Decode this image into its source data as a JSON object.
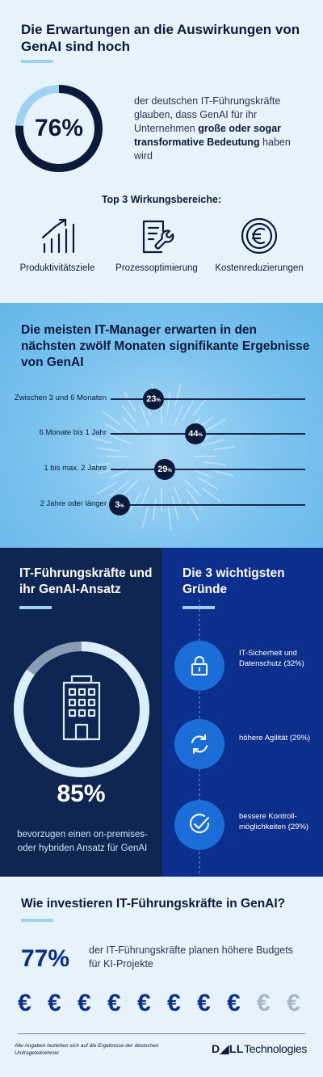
{
  "section1": {
    "title": "Die Erwartungen an die Auswirkungen von GenAI sind hoch",
    "stat_value": "76%",
    "stat_fraction": 0.76,
    "desc_plain": "der deutschen IT-Führungskräfte glauben, dass GenAI für ihr Unternehmen ",
    "desc_bold": "große oder sogar transformative Bedeutung",
    "desc_end": " haben wird",
    "top3_label": "Top 3 Wirkungsbereiche:",
    "areas": [
      {
        "label": "Produktivitätsziele",
        "icon": "chart-growth-icon"
      },
      {
        "label": "Prozessoptimierung",
        "icon": "document-wrench-icon"
      },
      {
        "label": "Kostenreduzierungen",
        "icon": "euro-coin-icon"
      }
    ]
  },
  "section2": {
    "title": "Die meisten IT-Manager erwarten in den nächsten zwölf Monaten signifikante Ergebnisse von GenAI",
    "rows": [
      {
        "label": "Zwischen 3 und 6 Monaten",
        "value": "23",
        "unit": "%"
      },
      {
        "label": "6 Monate bis 1 Jahr",
        "value": "44",
        "unit": "%"
      },
      {
        "label": "1 bis max. 2 Jahre",
        "value": "29",
        "unit": "%"
      },
      {
        "label": "2 Jahre oder länger",
        "value": "3",
        "unit": "%"
      }
    ]
  },
  "section3": {
    "left_title": "IT-Führungskräfte und ihr GenAI-Ansatz",
    "stat_value": "85%",
    "stat_fraction": 0.85,
    "stat_desc": "bevorzugen einen on-premises- oder hybriden Ansatz für GenAI",
    "right_title": "Die 3 wichtigsten Gründe",
    "reasons": [
      {
        "text": "IT-Sicherheit und Datenschutz (32%)",
        "icon": "lock-icon"
      },
      {
        "text": "höhere Agilität (29%)",
        "icon": "refresh-icon"
      },
      {
        "text": "bessere Kontroll-möglichkeiten (29%)",
        "icon": "check-circle-icon"
      }
    ]
  },
  "section4": {
    "title": "Wie investieren IT-Führungskräfte in GenAI?",
    "stat_value": "77%",
    "stat_desc": "der IT-Führungskräfte planen höhere Budgets für KI-Projekte",
    "euro_symbol": "€",
    "euro_total": 10,
    "euro_filled": 8
  },
  "footer": {
    "note": "Alle Angaben beziehen sich auf die Ergebnisse der deutschen Umfrageteilnehmer",
    "logo_brand": "D◢LL",
    "logo_suffix": "Technologies"
  },
  "colors": {
    "navy": "#0c1a3a",
    "light_blue": "#9fd2f1",
    "royal_blue": "#0c2e8c",
    "faded_euro": "#a8b6cc"
  }
}
